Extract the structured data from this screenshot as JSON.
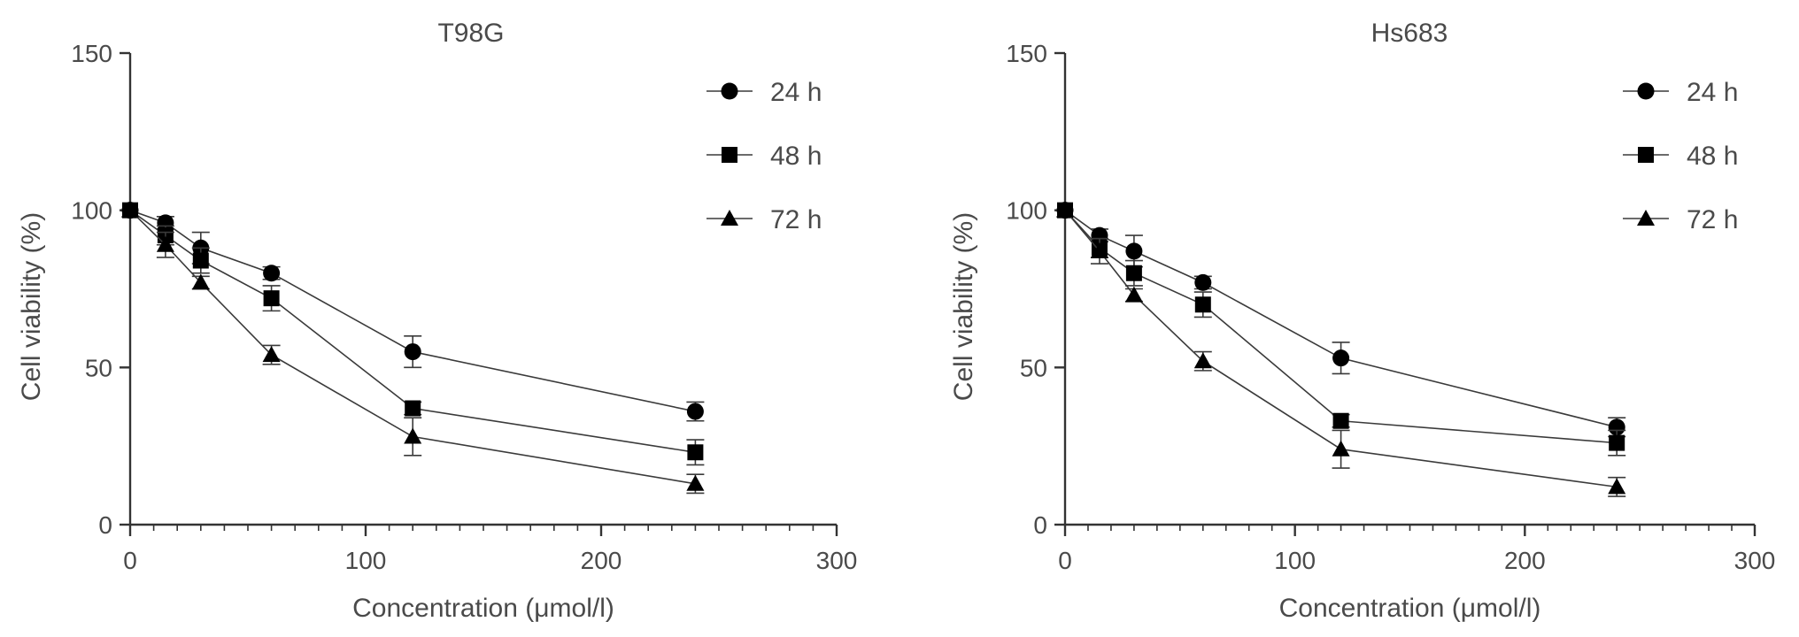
{
  "chart_data": [
    {
      "type": "line",
      "title": "T98G",
      "xlabel": "Concentration (μmol/l)",
      "ylabel": "Cell viability (%)",
      "xlim": [
        0,
        300
      ],
      "ylim": [
        0,
        150
      ],
      "xticks": [
        0,
        100,
        200,
        300
      ],
      "yticks": [
        0,
        50,
        100,
        150
      ],
      "x_minor_step": 10,
      "grid": false,
      "legend_position": "top-right",
      "series": [
        {
          "name": "24 h",
          "marker": "circle",
          "x": [
            0,
            15,
            30,
            60,
            120,
            240
          ],
          "values": [
            100,
            96,
            88,
            80,
            55,
            36
          ],
          "errors": [
            0,
            2,
            5,
            2,
            5,
            3
          ]
        },
        {
          "name": "48 h",
          "marker": "square",
          "x": [
            0,
            15,
            30,
            60,
            120,
            240
          ],
          "values": [
            100,
            92,
            84,
            72,
            37,
            23
          ],
          "errors": [
            0,
            3,
            4,
            4,
            2,
            4
          ]
        },
        {
          "name": "72 h",
          "marker": "triangle",
          "x": [
            0,
            15,
            30,
            60,
            120,
            240
          ],
          "values": [
            100,
            89,
            77,
            54,
            28,
            13
          ],
          "errors": [
            0,
            4,
            2,
            3,
            6,
            3
          ]
        }
      ]
    },
    {
      "type": "line",
      "title": "Hs683",
      "xlabel": "Concentration (μmol/l)",
      "ylabel": "Cell viability (%)",
      "xlim": [
        0,
        300
      ],
      "ylim": [
        0,
        150
      ],
      "xticks": [
        0,
        100,
        200,
        300
      ],
      "yticks": [
        0,
        50,
        100,
        150
      ],
      "x_minor_step": 10,
      "grid": false,
      "legend_position": "top-right",
      "series": [
        {
          "name": "24 h",
          "marker": "circle",
          "x": [
            0,
            15,
            30,
            60,
            120,
            240
          ],
          "values": [
            100,
            92,
            87,
            77,
            53,
            31
          ],
          "errors": [
            0,
            2,
            5,
            2,
            5,
            3
          ]
        },
        {
          "name": "48 h",
          "marker": "square",
          "x": [
            0,
            15,
            30,
            60,
            120,
            240
          ],
          "values": [
            100,
            88,
            80,
            70,
            33,
            26
          ],
          "errors": [
            0,
            3,
            4,
            4,
            2,
            4
          ]
        },
        {
          "name": "72 h",
          "marker": "triangle",
          "x": [
            0,
            15,
            30,
            60,
            120,
            240
          ],
          "values": [
            100,
            87,
            73,
            52,
            24,
            12
          ],
          "errors": [
            0,
            4,
            2,
            3,
            6,
            3
          ]
        }
      ]
    }
  ]
}
